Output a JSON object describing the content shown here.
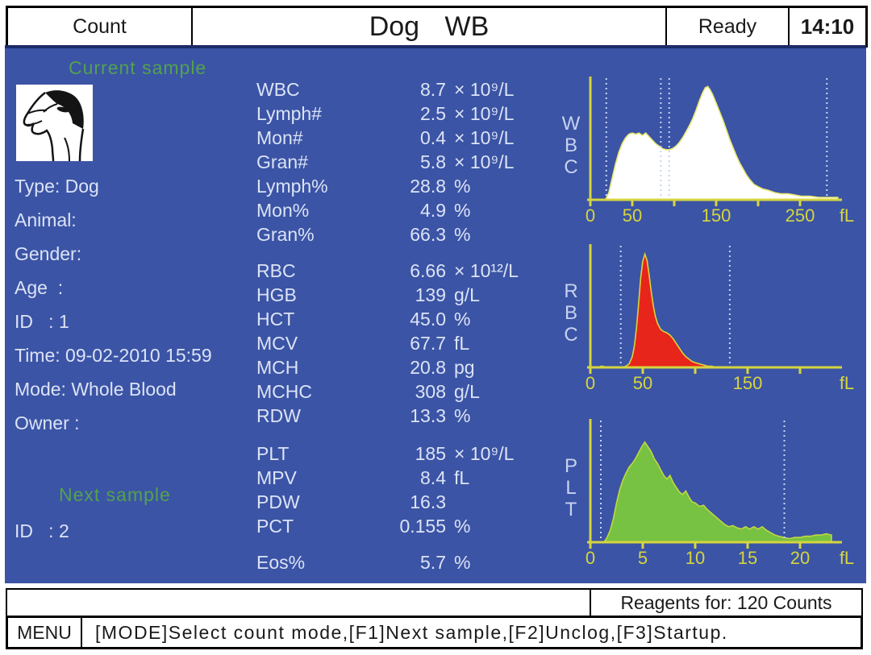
{
  "header": {
    "mode_label": "Count",
    "title": "Dog WB",
    "status": "Ready",
    "time": "14:10"
  },
  "colors": {
    "screen_bg": "#3b54a5",
    "green_text": "#54a14e",
    "white_text": "#dce3f6",
    "axis_yellow": "#d6d53e",
    "channel_label": "#c7d2f0",
    "discriminator": "#c9d4f2",
    "wbc_fill": "#ffffff",
    "wbc_outline": "#eae770",
    "rbc_fill": "#e8251a",
    "rbc_outline": "#d6d53e",
    "plt_fill": "#77c143",
    "plt_outline": "#c3d83e"
  },
  "icons": {
    "species_icon": "dog-icon"
  },
  "current_sample": {
    "section_label": "Current sample",
    "fields": [
      {
        "label": "Type:",
        "value": "Dog"
      },
      {
        "label": "Animal:",
        "value": ""
      },
      {
        "label": "Gender:",
        "value": ""
      },
      {
        "label": "Age  :",
        "value": ""
      },
      {
        "label": "ID   :",
        "value": "1"
      },
      {
        "label": "Time:",
        "value": "09-02-2010 15:59"
      },
      {
        "label": "Mode:",
        "value": "Whole Blood"
      },
      {
        "label": "Owner :",
        "value": ""
      }
    ]
  },
  "next_sample": {
    "section_label": "Next sample",
    "fields": [
      {
        "label": "ID   :",
        "value": "2"
      }
    ]
  },
  "parameters": {
    "groups": [
      [
        {
          "name": "WBC",
          "value": "8.7",
          "unit": "× 10⁹/L"
        },
        {
          "name": "Lymph#",
          "value": "2.5",
          "unit": "× 10⁹/L"
        },
        {
          "name": "Mon#",
          "value": "0.4",
          "unit": "× 10⁹/L"
        },
        {
          "name": "Gran#",
          "value": "5.8",
          "unit": "× 10⁹/L"
        },
        {
          "name": "Lymph%",
          "value": "28.8",
          "unit": "%"
        },
        {
          "name": "Mon%",
          "value": "4.9",
          "unit": "%"
        },
        {
          "name": "Gran%",
          "value": "66.3",
          "unit": "%"
        }
      ],
      [
        {
          "name": "RBC",
          "value": "6.66",
          "unit": "× 10¹²/L"
        },
        {
          "name": "HGB",
          "value": "139",
          "unit": "g/L"
        },
        {
          "name": "HCT",
          "value": "45.0",
          "unit": "%"
        },
        {
          "name": "MCV",
          "value": "67.7",
          "unit": "fL"
        },
        {
          "name": "MCH",
          "value": "20.8",
          "unit": "pg"
        },
        {
          "name": "MCHC",
          "value": "308",
          "unit": "g/L"
        },
        {
          "name": "RDW",
          "value": "13.3",
          "unit": "%"
        }
      ],
      [
        {
          "name": "PLT",
          "value": "185",
          "unit": "× 10⁹/L"
        },
        {
          "name": "MPV",
          "value": "8.4",
          "unit": "fL"
        },
        {
          "name": "PDW",
          "value": "16.3",
          "unit": ""
        },
        {
          "name": "PCT",
          "value": "0.155",
          "unit": "%"
        }
      ],
      [
        {
          "name": "Eos%",
          "value": "5.7",
          "unit": "%"
        }
      ]
    ]
  },
  "chart_data": [
    {
      "type": "area",
      "name": "WBC",
      "xlabel": "fL",
      "x_ticks": [
        0,
        50,
        100,
        150,
        200,
        250
      ],
      "x_tick_labels": [
        "0",
        "50",
        "",
        "150",
        "",
        "250"
      ],
      "xlim": [
        0,
        295
      ],
      "grid": false,
      "legend": "none",
      "discriminators_fl": [
        19,
        84,
        94,
        282
      ],
      "fill": "#ffffff",
      "outline": "#eae770",
      "points": [
        [
          18,
          0
        ],
        [
          22,
          0.06
        ],
        [
          26,
          0.18
        ],
        [
          30,
          0.3
        ],
        [
          34,
          0.4
        ],
        [
          38,
          0.47
        ],
        [
          42,
          0.52
        ],
        [
          46,
          0.55
        ],
        [
          50,
          0.56
        ],
        [
          54,
          0.55
        ],
        [
          58,
          0.56
        ],
        [
          62,
          0.54
        ],
        [
          66,
          0.56
        ],
        [
          70,
          0.53
        ],
        [
          74,
          0.5
        ],
        [
          78,
          0.47
        ],
        [
          82,
          0.45
        ],
        [
          86,
          0.43
        ],
        [
          90,
          0.42
        ],
        [
          94,
          0.42
        ],
        [
          98,
          0.43
        ],
        [
          102,
          0.45
        ],
        [
          106,
          0.48
        ],
        [
          110,
          0.52
        ],
        [
          114,
          0.57
        ],
        [
          118,
          0.62
        ],
        [
          122,
          0.68
        ],
        [
          126,
          0.75
        ],
        [
          130,
          0.83
        ],
        [
          134,
          0.9
        ],
        [
          137,
          0.94
        ],
        [
          140,
          0.95
        ],
        [
          143,
          0.92
        ],
        [
          146,
          0.88
        ],
        [
          150,
          0.81
        ],
        [
          154,
          0.74
        ],
        [
          158,
          0.67
        ],
        [
          162,
          0.59
        ],
        [
          166,
          0.51
        ],
        [
          170,
          0.44
        ],
        [
          174,
          0.37
        ],
        [
          178,
          0.31
        ],
        [
          182,
          0.26
        ],
        [
          186,
          0.21
        ],
        [
          190,
          0.17
        ],
        [
          195,
          0.13
        ],
        [
          200,
          0.11
        ],
        [
          206,
          0.09
        ],
        [
          212,
          0.08
        ],
        [
          220,
          0.06
        ],
        [
          228,
          0.05
        ],
        [
          236,
          0.05
        ],
        [
          244,
          0.04
        ],
        [
          252,
          0.03
        ],
        [
          262,
          0.03
        ],
        [
          272,
          0.02
        ],
        [
          282,
          0.02
        ],
        [
          292,
          0.02
        ],
        [
          295,
          0.02
        ]
      ]
    },
    {
      "type": "area",
      "name": "RBC",
      "xlabel": "fL",
      "x_ticks": [
        0,
        50,
        100,
        150,
        200
      ],
      "x_tick_labels": [
        "0",
        "50",
        "",
        "150",
        ""
      ],
      "xlim": [
        0,
        200
      ],
      "grid": false,
      "legend": "none",
      "discriminators_fl": [
        29,
        133
      ],
      "fill": "#e8251a",
      "outline": "#d6d53e",
      "points": [
        [
          10,
          0.01
        ],
        [
          12,
          0.01
        ],
        [
          14,
          0
        ],
        [
          30,
          0
        ],
        [
          34,
          0.01
        ],
        [
          37,
          0.03
        ],
        [
          40,
          0.09
        ],
        [
          42,
          0.18
        ],
        [
          44,
          0.33
        ],
        [
          46,
          0.53
        ],
        [
          48,
          0.75
        ],
        [
          50,
          0.89
        ],
        [
          52,
          0.95
        ],
        [
          54,
          0.9
        ],
        [
          56,
          0.78
        ],
        [
          58,
          0.64
        ],
        [
          60,
          0.52
        ],
        [
          62,
          0.43
        ],
        [
          64,
          0.37
        ],
        [
          67,
          0.32
        ],
        [
          70,
          0.3
        ],
        [
          73,
          0.29
        ],
        [
          76,
          0.27
        ],
        [
          79,
          0.24
        ],
        [
          82,
          0.2
        ],
        [
          85,
          0.16
        ],
        [
          88,
          0.12
        ],
        [
          91,
          0.09
        ],
        [
          94,
          0.07
        ],
        [
          97,
          0.05
        ],
        [
          100,
          0.04
        ],
        [
          104,
          0.03
        ],
        [
          108,
          0.02
        ],
        [
          112,
          0.01
        ],
        [
          116,
          0.01
        ],
        [
          120,
          0
        ]
      ]
    },
    {
      "type": "area",
      "name": "PLT",
      "xlabel": "fL",
      "x_ticks": [
        0,
        5,
        10,
        15,
        20
      ],
      "x_tick_labels": [
        "0",
        "5",
        "10",
        "15",
        "20"
      ],
      "xlim": [
        0,
        23
      ],
      "grid": false,
      "legend": "none",
      "discriminators_fl": [
        1,
        18.5
      ],
      "fill": "#77c143",
      "outline": "#c3d83e",
      "points": [
        [
          1.3,
          0
        ],
        [
          1.6,
          0.04
        ],
        [
          1.9,
          0.1
        ],
        [
          2.2,
          0.2
        ],
        [
          2.5,
          0.33
        ],
        [
          2.8,
          0.44
        ],
        [
          3.1,
          0.52
        ],
        [
          3.4,
          0.58
        ],
        [
          3.7,
          0.63
        ],
        [
          4.0,
          0.66
        ],
        [
          4.3,
          0.7
        ],
        [
          4.6,
          0.75
        ],
        [
          4.9,
          0.8
        ],
        [
          5.2,
          0.84
        ],
        [
          5.5,
          0.8
        ],
        [
          5.8,
          0.76
        ],
        [
          6.1,
          0.7
        ],
        [
          6.4,
          0.66
        ],
        [
          6.7,
          0.61
        ],
        [
          7.0,
          0.56
        ],
        [
          7.3,
          0.53
        ],
        [
          7.6,
          0.56
        ],
        [
          7.9,
          0.5
        ],
        [
          8.2,
          0.46
        ],
        [
          8.5,
          0.42
        ],
        [
          8.8,
          0.4
        ],
        [
          9.1,
          0.43
        ],
        [
          9.4,
          0.38
        ],
        [
          9.7,
          0.34
        ],
        [
          10.0,
          0.33
        ],
        [
          10.4,
          0.3
        ],
        [
          10.8,
          0.31
        ],
        [
          11.2,
          0.27
        ],
        [
          11.6,
          0.24
        ],
        [
          12.0,
          0.21
        ],
        [
          12.4,
          0.18
        ],
        [
          12.8,
          0.15
        ],
        [
          13.2,
          0.13
        ],
        [
          13.6,
          0.14
        ],
        [
          14.0,
          0.12
        ],
        [
          14.4,
          0.11
        ],
        [
          14.8,
          0.13
        ],
        [
          15.2,
          0.11
        ],
        [
          15.6,
          0.13
        ],
        [
          16.0,
          0.11
        ],
        [
          16.4,
          0.13
        ],
        [
          16.8,
          0.1
        ],
        [
          17.2,
          0.08
        ],
        [
          17.6,
          0.06
        ],
        [
          18.0,
          0.05
        ],
        [
          18.5,
          0.04
        ],
        [
          19.0,
          0.03
        ],
        [
          19.5,
          0.04
        ],
        [
          20.0,
          0.04
        ],
        [
          20.5,
          0.05
        ],
        [
          21.0,
          0.05
        ],
        [
          21.5,
          0.06
        ],
        [
          22.0,
          0.06
        ],
        [
          22.5,
          0.07
        ],
        [
          23.0,
          0.06
        ]
      ]
    }
  ],
  "status_bar": {
    "reagents_label": "Reagents for: 120 Counts"
  },
  "menu_bar": {
    "menu_label": "MENU",
    "hint": "[MODE]Select count mode,[F1]Next sample,[F2]Unclog,[F3]Startup."
  }
}
